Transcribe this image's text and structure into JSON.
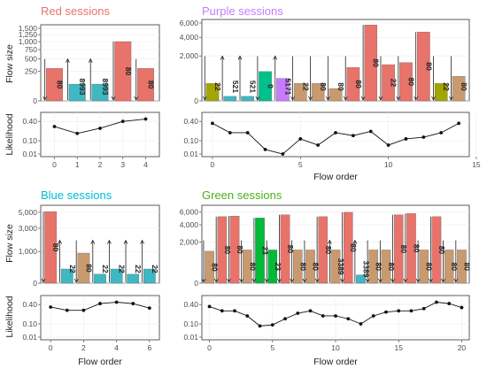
{
  "panels": [
    {
      "id": "red",
      "title": "Red sessions",
      "title_color": "#e8736a",
      "top_ylabel": "Flow size",
      "bottom_ylabel": "Likelihood",
      "xlabel": "",
      "top_yticks": [
        0,
        250,
        500,
        750,
        1000,
        1250,
        1500
      ],
      "top_ytick_labels": [
        "0",
        "250",
        "500",
        "750",
        "1,000",
        "1,250",
        "1,500"
      ],
      "bottom_yticks": [
        0.01,
        0.1,
        0.4
      ],
      "bottom_ytick_labels": [
        "0.01",
        "0.10",
        "0.40"
      ],
      "xticks": [
        0,
        1,
        2,
        3,
        4
      ],
      "xtick_labels": [
        "0",
        "1",
        "2",
        "3",
        "4"
      ]
    },
    {
      "id": "purple",
      "title": "Purple sessions",
      "title_color": "#c77cff",
      "top_ylabel": "",
      "bottom_ylabel": "",
      "xlabel": "Flow order",
      "top_yticks": [
        0,
        2000,
        4000,
        6000
      ],
      "top_ytick_labels": [
        "0",
        "2,000",
        "4,000",
        "6,000"
      ],
      "bottom_yticks": [
        0.01,
        0.1,
        0.4
      ],
      "bottom_ytick_labels": [
        "0.01",
        "0.10",
        "0.40"
      ],
      "xticks": [
        0,
        5,
        10,
        15
      ],
      "xtick_labels": [
        "0",
        "5",
        "10",
        "15"
      ]
    },
    {
      "id": "blue",
      "title": "Blue sessions",
      "title_color": "#00bcd4",
      "top_ylabel": "Flow size",
      "bottom_ylabel": "Likelihood",
      "xlabel": "Flow order",
      "top_yticks": [
        0,
        1000,
        3000,
        5000
      ],
      "top_ytick_labels": [
        "0",
        "1,000",
        "3,000",
        "5,000"
      ],
      "bottom_yticks": [
        0.01,
        0.1,
        0.4
      ],
      "bottom_ytick_labels": [
        "0.01",
        "0.10",
        "0.40"
      ],
      "xticks": [
        0,
        2,
        4,
        6
      ],
      "xtick_labels": [
        "0",
        "2",
        "4",
        "6"
      ]
    },
    {
      "id": "green",
      "title": "Green sessions",
      "title_color": "#4caf1a",
      "top_ylabel": "",
      "bottom_ylabel": "",
      "xlabel": "Flow order",
      "top_yticks": [
        0,
        2000,
        4000,
        6000
      ],
      "top_ytick_labels": [
        "0",
        "2,000",
        "4,000",
        "6,000"
      ],
      "bottom_yticks": [
        0.01,
        0.1,
        0.4
      ],
      "bottom_ytick_labels": [
        "0.01",
        "0.10",
        "0.40"
      ],
      "xticks": [
        0,
        5,
        10,
        15,
        20
      ],
      "xtick_labels": [
        "0",
        "5",
        "10",
        "15",
        "20"
      ]
    }
  ],
  "chart_data": [
    {
      "panel": "red",
      "type": "bar",
      "title": "Red sessions",
      "xlabel": "",
      "ylabel": "Flow size",
      "y_scale": "sqrt",
      "ylim": [
        0,
        1500
      ],
      "x": [
        0,
        1,
        2,
        3,
        4
      ],
      "values": [
        300,
        80,
        80,
        1000,
        300
      ],
      "bar_labels": [
        "80",
        "8993",
        "8993",
        "80",
        "80"
      ],
      "bar_colors": [
        "#e8736a",
        "#3fb8c4",
        "#3fb8c4",
        "#e8736a",
        "#e8736a"
      ],
      "direction": [
        "down",
        "up",
        "up",
        "down",
        "down"
      ]
    },
    {
      "panel": "red",
      "type": "line",
      "xlabel": "",
      "ylabel": "Likelihood",
      "y_scale": "sqrt",
      "ylim": [
        0.01,
        0.5
      ],
      "x": [
        0,
        1,
        2,
        3,
        4
      ],
      "values": [
        0.3,
        0.19,
        0.27,
        0.4,
        0.45
      ]
    },
    {
      "panel": "purple",
      "type": "bar",
      "title": "Purple sessions",
      "xlabel": "",
      "ylabel": "",
      "y_scale": "sqrt",
      "ylim": [
        0,
        6000
      ],
      "x": [
        0,
        1,
        2,
        3,
        4,
        5,
        6,
        7,
        8,
        9,
        10,
        11,
        12,
        13,
        14
      ],
      "values": [
        300,
        20,
        20,
        850,
        500,
        300,
        300,
        150,
        1100,
        5700,
        1300,
        1450,
        4700,
        300,
        600
      ],
      "bar_labels": [
        "22",
        "521",
        "521",
        "0",
        "5171",
        "22",
        "80",
        "80",
        "80",
        "80",
        "22",
        "80",
        "80",
        "22",
        "80"
      ],
      "bar_colors": [
        "#a3a500",
        "#3fb8c4",
        "#3fb8c4",
        "#00c08b",
        "#c77cff",
        "#c99a6f",
        "#c99a6f",
        "#c99a6f",
        "#e8736a",
        "#e8736a",
        "#e8736a",
        "#e8736a",
        "#e8736a",
        "#a3a500",
        "#c99a6f"
      ],
      "direction": [
        "down",
        "up",
        "up",
        "down",
        "up",
        "down",
        "down",
        "down",
        "down",
        "down",
        "down",
        "down",
        "down",
        "down",
        "down"
      ]
    },
    {
      "panel": "purple",
      "type": "line",
      "xlabel": "Flow order",
      "ylabel": "",
      "y_scale": "sqrt",
      "ylim": [
        0.01,
        0.5
      ],
      "x": [
        0,
        1,
        2,
        3,
        4,
        5,
        6,
        7,
        8,
        9,
        10,
        11,
        12,
        13,
        14
      ],
      "values": [
        0.36,
        0.2,
        0.2,
        0.03,
        0.008,
        0.12,
        0.06,
        0.2,
        0.16,
        0.22,
        0.06,
        0.12,
        0.14,
        0.2,
        0.36
      ]
    },
    {
      "panel": "blue",
      "type": "bar",
      "title": "Blue sessions",
      "xlabel": "",
      "ylabel": "Flow size",
      "y_scale": "sqrt",
      "ylim": [
        0,
        5500
      ],
      "x": [
        0,
        1,
        2,
        3,
        4,
        5,
        6
      ],
      "values": [
        5100,
        200,
        900,
        80,
        200,
        80,
        200
      ],
      "bar_labels": [
        "80",
        "22",
        "80",
        "22",
        "22",
        "22",
        "22"
      ],
      "bar_colors": [
        "#e8736a",
        "#3fb8c4",
        "#c99a6f",
        "#3fb8c4",
        "#3fb8c4",
        "#3fb8c4",
        "#3fb8c4"
      ],
      "direction": [
        "down",
        "up",
        "down",
        "up",
        "up",
        "up",
        "up"
      ]
    },
    {
      "panel": "blue",
      "type": "line",
      "xlabel": "Flow order",
      "ylabel": "Likelihood",
      "y_scale": "sqrt",
      "ylim": [
        0.01,
        0.5
      ],
      "x": [
        0,
        1,
        2,
        3,
        4,
        5,
        6
      ],
      "values": [
        0.35,
        0.29,
        0.29,
        0.42,
        0.45,
        0.42,
        0.33
      ]
    },
    {
      "panel": "green",
      "type": "bar",
      "title": "Green sessions",
      "xlabel": "",
      "ylabel": "",
      "y_scale": "sqrt",
      "ylim": [
        0,
        6500
      ],
      "x": [
        0,
        1,
        2,
        3,
        4,
        5,
        6,
        7,
        8,
        9,
        10,
        11,
        12,
        13,
        14,
        15,
        16,
        17,
        18,
        19,
        20
      ],
      "values": [
        1200,
        5200,
        5300,
        1300,
        5000,
        1300,
        5500,
        1300,
        1300,
        5200,
        1300,
        5900,
        80,
        1300,
        1300,
        5500,
        5700,
        1300,
        5200,
        1300,
        1300
      ],
      "bar_labels": [
        "80",
        "80",
        "80",
        "80",
        "23",
        "23",
        "80",
        "80",
        "80",
        "80",
        "3389",
        "80",
        "3389",
        "80",
        "80",
        "80",
        "80",
        "80",
        "80",
        "80",
        "80"
      ],
      "bar_colors": [
        "#c99a6f",
        "#e8736a",
        "#e8736a",
        "#c99a6f",
        "#00ba38",
        "#00ba38",
        "#e8736a",
        "#c99a6f",
        "#c99a6f",
        "#e8736a",
        "#c99a6f",
        "#e8736a",
        "#3fb8c4",
        "#c99a6f",
        "#c99a6f",
        "#e8736a",
        "#e8736a",
        "#c99a6f",
        "#e8736a",
        "#c99a6f",
        "#c99a6f"
      ],
      "direction": [
        "down",
        "down",
        "down",
        "down",
        "down",
        "down",
        "down",
        "down",
        "down",
        "down",
        "up",
        "down",
        "up",
        "down",
        "down",
        "down",
        "down",
        "down",
        "down",
        "down",
        "down"
      ]
    },
    {
      "panel": "green",
      "type": "line",
      "xlabel": "Flow order",
      "ylabel": "",
      "y_scale": "sqrt",
      "ylim": [
        0.01,
        0.5
      ],
      "x": [
        0,
        1,
        2,
        3,
        4,
        5,
        6,
        7,
        8,
        9,
        10,
        11,
        12,
        13,
        14,
        15,
        16,
        17,
        18,
        19,
        20
      ],
      "values": [
        0.36,
        0.28,
        0.28,
        0.2,
        0.08,
        0.09,
        0.16,
        0.24,
        0.28,
        0.2,
        0.2,
        0.16,
        0.1,
        0.2,
        0.26,
        0.28,
        0.28,
        0.32,
        0.45,
        0.42,
        0.34
      ]
    }
  ]
}
